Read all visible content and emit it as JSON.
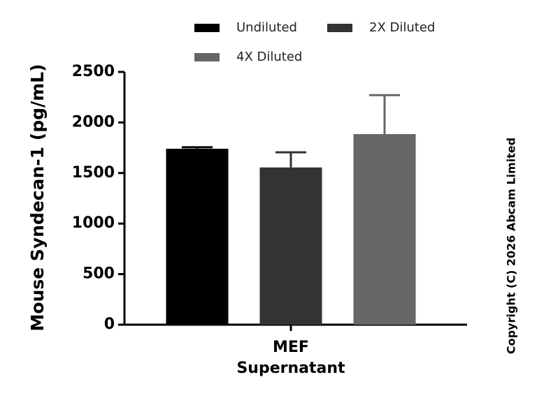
{
  "chart_data": {
    "type": "bar",
    "y_label": "Mouse Syndecan-1 (pg/mL)",
    "copyright": "Copyright (C) 2026 Abcam Limited",
    "categories": [
      "MEF\nSupernatant"
    ],
    "series": [
      {
        "name": "Undiluted",
        "color": "#000000",
        "values": [
          1740
        ],
        "errors": [
          15
        ]
      },
      {
        "name": "2X Diluted",
        "color": "#333333",
        "values": [
          1555
        ],
        "errors": [
          150
        ]
      },
      {
        "name": "4X Diluted",
        "color": "#666666",
        "values": [
          1885
        ],
        "errors": [
          385
        ]
      }
    ],
    "ylim": [
      0,
      2500
    ],
    "yticks": [
      0,
      500,
      1000,
      1500,
      2000,
      2500
    ]
  }
}
